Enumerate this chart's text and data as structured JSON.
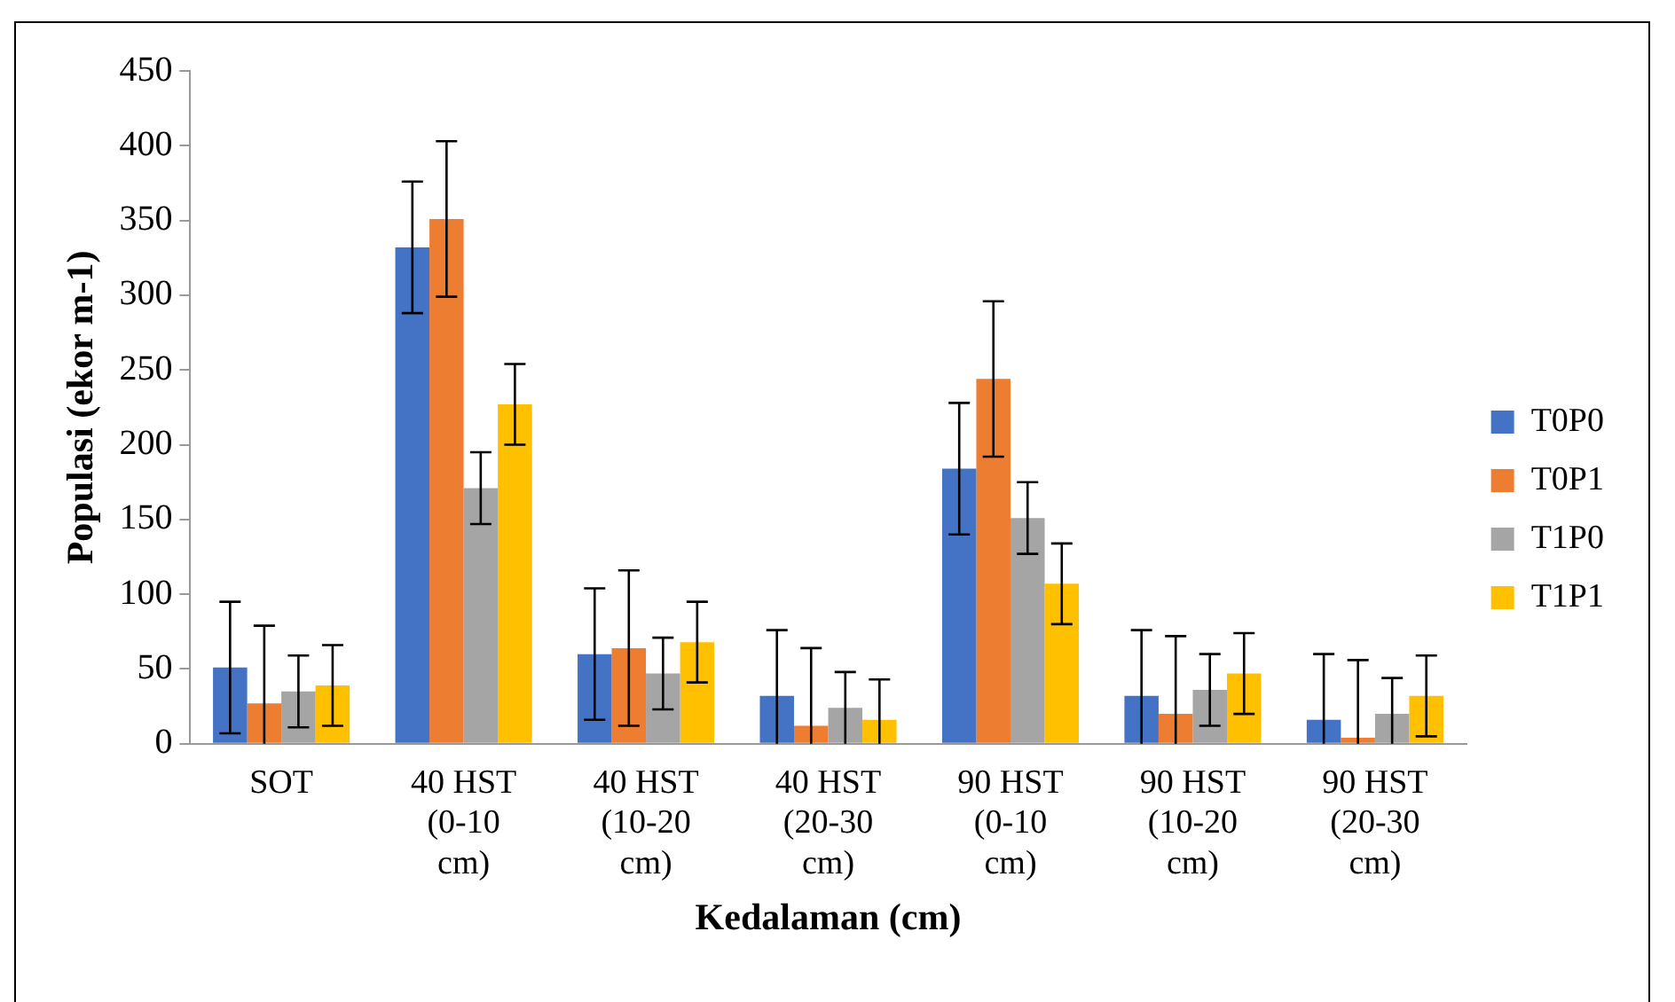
{
  "chart_data": {
    "type": "bar",
    "xlabel": "Kedalaman (cm)",
    "ylabel": "Populasi (ekor m-1)",
    "categories": [
      "SOT",
      "40 HST (0-10 cm)",
      "40 HST (10-20 cm)",
      "40 HST (20-30 cm)",
      "90 HST (0-10 cm)",
      "90 HST (10-20 cm)",
      "90 HST (20-30 cm)"
    ],
    "series": [
      {
        "name": "T0P0",
        "color": "#4472c4",
        "values": [
          51,
          332,
          60,
          32,
          184,
          32,
          16
        ],
        "errors": [
          44,
          44,
          44,
          [
            0,
            76
          ],
          44,
          [
            0,
            76
          ],
          [
            0,
            60
          ]
        ]
      },
      {
        "name": "T0P1",
        "color": "#ed7d31",
        "values": [
          27,
          351,
          64,
          12,
          244,
          20,
          4
        ],
        "errors": [
          [
            0,
            79
          ],
          52,
          52,
          [
            0,
            64
          ],
          52,
          [
            0,
            72
          ],
          [
            0,
            56
          ]
        ]
      },
      {
        "name": "T1P0",
        "color": "#a5a5a5",
        "values": [
          35,
          171,
          47,
          24,
          151,
          36,
          20
        ],
        "errors": [
          24,
          24,
          24,
          [
            0,
            48
          ],
          24,
          24,
          [
            0,
            44
          ]
        ]
      },
      {
        "name": "T1P1",
        "color": "#ffc000",
        "values": [
          39,
          227,
          68,
          16,
          107,
          47,
          32
        ],
        "errors": [
          27,
          27,
          27,
          [
            0,
            43
          ],
          27,
          27,
          27
        ]
      }
    ],
    "ylim": [
      0,
      450
    ],
    "yticks": [
      0,
      50,
      100,
      150,
      200,
      250,
      300,
      350,
      400,
      450
    ],
    "grid": false,
    "legend": "right"
  }
}
